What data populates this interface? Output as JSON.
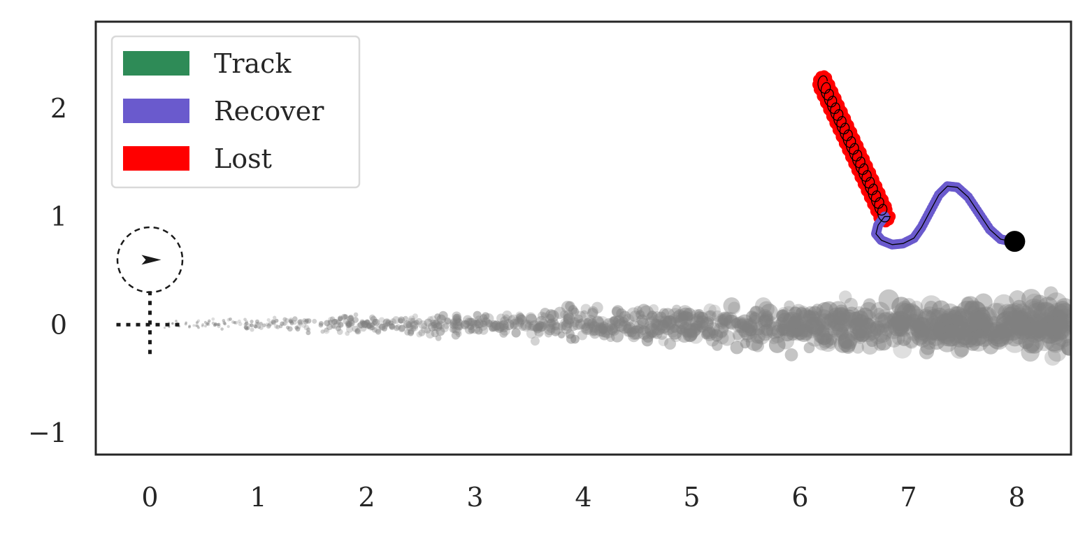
{
  "chart_data": {
    "type": "scatter",
    "title": "",
    "xlabel": "",
    "ylabel": "",
    "xlim": [
      -0.5,
      8.5
    ],
    "ylim": [
      -1.2,
      2.8
    ],
    "xticks": [
      0,
      1,
      2,
      3,
      4,
      5,
      6,
      7,
      8
    ],
    "yticks": [
      -1,
      0,
      1,
      2
    ],
    "xtick_labels": [
      "0",
      "1",
      "2",
      "3",
      "4",
      "5",
      "6",
      "7",
      "8"
    ],
    "ytick_labels": [
      "−1",
      "0",
      "1",
      "2"
    ],
    "grid": false,
    "legend": {
      "placement": "top-left",
      "entries": [
        {
          "label": "Track",
          "color": "#2e8b57"
        },
        {
          "label": "Recover",
          "color": "#6a5acd"
        },
        {
          "label": "Lost",
          "color": "#ff0000"
        }
      ]
    },
    "particle_cloud": {
      "color": "#808080",
      "x_range": [
        0.1,
        8.5
      ],
      "y_center": 0.0,
      "y_spread_near": 0.03,
      "y_spread_far": 0.2,
      "description_note": ""
    },
    "agent": {
      "position": [
        0.0,
        0.6
      ],
      "heading_deg": 0,
      "circle_radius": 0.3
    },
    "origin_marker": {
      "position": [
        0.0,
        0.0
      ]
    },
    "lost_path": {
      "color": "#ff0000",
      "start": [
        6.2,
        2.25
      ],
      "end": [
        6.78,
        1.0
      ],
      "loops": 20
    },
    "recover_path": {
      "color": "#6a5acd",
      "points": [
        [
          6.78,
          1.0
        ],
        [
          6.72,
          0.92
        ],
        [
          6.7,
          0.84
        ],
        [
          6.75,
          0.78
        ],
        [
          6.85,
          0.74
        ],
        [
          6.95,
          0.75
        ],
        [
          7.05,
          0.8
        ],
        [
          7.12,
          0.9
        ],
        [
          7.2,
          1.05
        ],
        [
          7.28,
          1.2
        ],
        [
          7.36,
          1.28
        ],
        [
          7.45,
          1.27
        ],
        [
          7.55,
          1.18
        ],
        [
          7.65,
          1.03
        ],
        [
          7.75,
          0.88
        ],
        [
          7.85,
          0.79
        ],
        [
          7.95,
          0.77
        ]
      ]
    },
    "target": {
      "position": [
        7.98,
        0.77
      ],
      "color": "#000000"
    }
  }
}
